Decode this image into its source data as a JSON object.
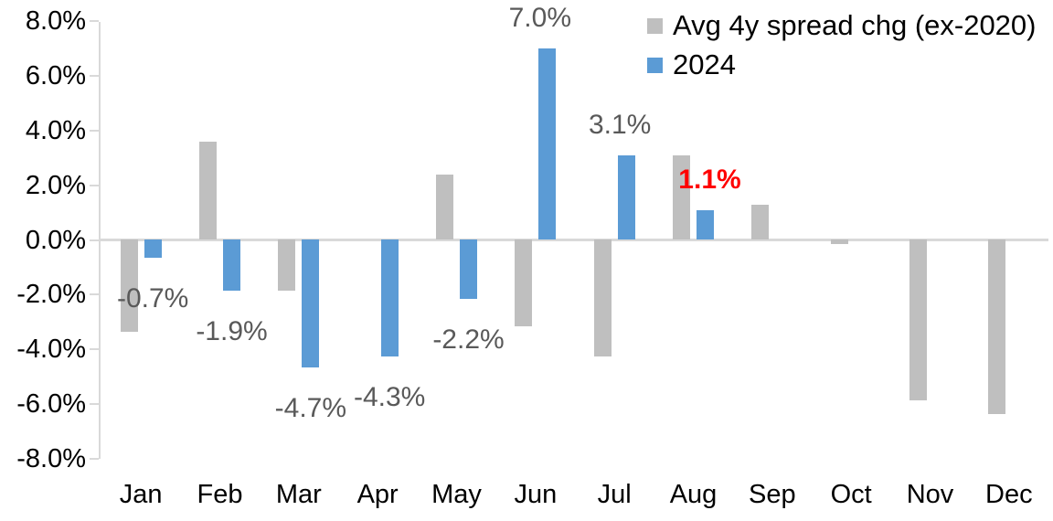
{
  "chart_data": {
    "type": "bar",
    "title": "",
    "categories": [
      "Jan",
      "Feb",
      "Mar",
      "Apr",
      "May",
      "Jun",
      "Jul",
      "Aug",
      "Sep",
      "Oct",
      "Nov",
      "Dec"
    ],
    "series": [
      {
        "name": "Avg 4y spread chg (ex-2020)",
        "color": "#bfbfbf",
        "values": [
          -3.4,
          3.6,
          -1.9,
          0.0,
          2.4,
          -3.2,
          -4.3,
          3.1,
          1.3,
          -0.2,
          -5.9,
          -6.4
        ]
      },
      {
        "name": "2024",
        "color": "#5b9bd5",
        "values": [
          -0.7,
          -1.9,
          -4.7,
          -4.3,
          -2.2,
          7.0,
          3.1,
          1.1,
          null,
          null,
          null,
          null
        ],
        "data_labels": [
          "-0.7%",
          "-1.9%",
          "-4.7%",
          "-4.3%",
          "-2.2%",
          "7.0%",
          "3.1%",
          "1.1%",
          null,
          null,
          null,
          null
        ],
        "data_label_colors": [
          "#595959",
          "#595959",
          "#595959",
          "#595959",
          "#595959",
          "#595959",
          "#595959",
          "#ff0000",
          null,
          null,
          null,
          null
        ],
        "data_label_bold": [
          false,
          false,
          false,
          false,
          false,
          false,
          false,
          true,
          false,
          false,
          false,
          false
        ],
        "data_label_dx": [
          0,
          0,
          0,
          0,
          0,
          -8,
          -7,
          5,
          0,
          0,
          0,
          0
        ]
      }
    ],
    "ylim": [
      -8,
      8
    ],
    "ytick_step": 2,
    "ytick_labels": [
      "8.0%",
      "6.0%",
      "4.0%",
      "2.0%",
      "0.0%",
      "-2.0%",
      "-4.0%",
      "-6.0%",
      "-8.0%"
    ],
    "grid": "zero-line-only",
    "axis_color": "#d9d9d9",
    "legend_position": "top-right"
  }
}
